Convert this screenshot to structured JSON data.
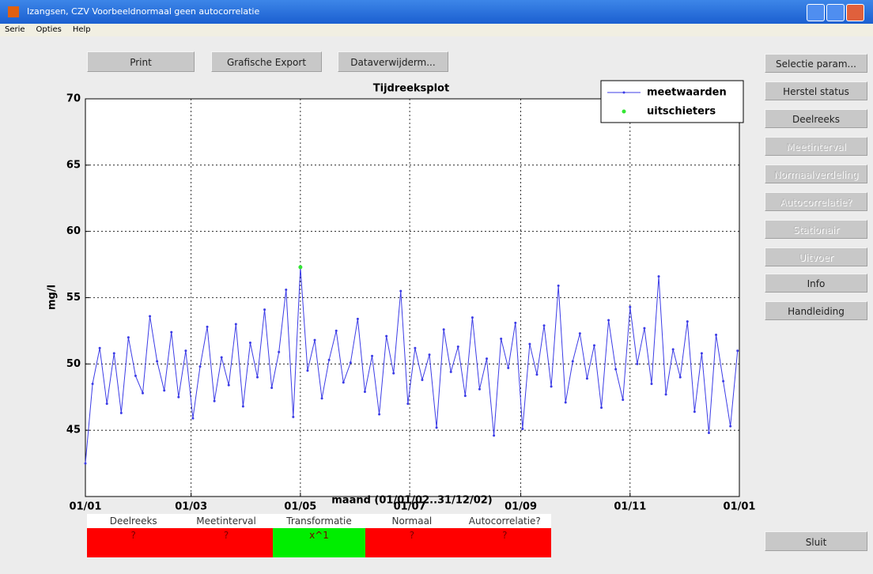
{
  "window": {
    "title": "Izangsen, CZV Voorbeeldnormaal geen autocorrelatie",
    "menu": [
      "Serie",
      "Opties",
      "Help"
    ]
  },
  "toolbar": [
    "Print",
    "Grafische Export",
    "Dataverwijderm..."
  ],
  "side_buttons": [
    {
      "label": "Selectie param...",
      "enabled": true
    },
    {
      "label": "Herstel status",
      "enabled": true
    },
    {
      "label": "Deelreeks",
      "enabled": true
    },
    {
      "label": "Meetinterval",
      "enabled": false
    },
    {
      "label": "Normaalverdeling",
      "enabled": false
    },
    {
      "label": "Autocorrelatie?",
      "enabled": false
    },
    {
      "label": "Stationair",
      "enabled": false
    },
    {
      "label": "Uitvoer",
      "enabled": false
    },
    {
      "label": "Info",
      "enabled": true
    },
    {
      "label": "Handleiding",
      "enabled": true
    }
  ],
  "close_button": "Sluit",
  "chart_data": {
    "type": "line",
    "title": "Tijdreeksplot",
    "x_label": "maand (01/01/02..31/12/02)",
    "y_label": "mg/l",
    "xlim": [
      0,
      365
    ],
    "xticks": [
      {
        "value": 0,
        "label": "01/01"
      },
      {
        "value": 59,
        "label": "01/03"
      },
      {
        "value": 120,
        "label": "01/05"
      },
      {
        "value": 181,
        "label": "01/07"
      },
      {
        "value": 243,
        "label": "01/09"
      },
      {
        "value": 304,
        "label": "01/11"
      },
      {
        "value": 365,
        "label": "01/01"
      }
    ],
    "ylim": [
      40,
      70
    ],
    "yticks": [
      45,
      50,
      55,
      60,
      65,
      70
    ],
    "grid": true,
    "legend": "top-right",
    "series": [
      {
        "name": "meetwaarden",
        "color": "#3c3ce6",
        "x": [
          0,
          4,
          8,
          12,
          16,
          20,
          24,
          28,
          32,
          36,
          40,
          44,
          48,
          52,
          56,
          60,
          64,
          68,
          72,
          76,
          80,
          84,
          88,
          92,
          96,
          100,
          104,
          108,
          112,
          116,
          120,
          124,
          128,
          132,
          136,
          140,
          144,
          148,
          152,
          156,
          160,
          164,
          168,
          172,
          176,
          180,
          184,
          188,
          192,
          196,
          200,
          204,
          208,
          212,
          216,
          220,
          224,
          228,
          232,
          236,
          240,
          244,
          248,
          252,
          256,
          260,
          264,
          268,
          272,
          276,
          280,
          284,
          288,
          292,
          296,
          300,
          304,
          308,
          312,
          316,
          320,
          324,
          328,
          332,
          336,
          340,
          344,
          348,
          352,
          356,
          360,
          364
        ],
        "values": [
          42.5,
          48.5,
          51.2,
          47.0,
          50.8,
          46.3,
          52.0,
          49.1,
          47.8,
          53.6,
          50.2,
          48.0,
          52.4,
          47.5,
          51.0,
          45.9,
          49.8,
          52.8,
          47.2,
          50.5,
          48.4,
          53.0,
          46.8,
          51.6,
          49.0,
          54.1,
          48.2,
          50.9,
          55.6,
          46.0,
          57.3,
          49.5,
          51.8,
          47.4,
          50.3,
          52.5,
          48.6,
          50.1,
          53.4,
          47.9,
          50.6,
          46.2,
          52.1,
          49.3,
          55.5,
          47.0,
          51.2,
          48.8,
          50.7,
          45.2,
          52.6,
          49.4,
          51.3,
          47.6,
          53.5,
          48.1,
          50.4,
          44.6,
          51.9,
          49.7,
          53.1,
          45.1,
          51.5,
          49.2,
          52.9,
          48.3,
          55.9,
          47.1,
          50.2,
          52.3,
          48.9,
          51.4,
          46.7,
          53.3,
          49.6,
          47.3,
          54.3,
          50.0,
          52.7,
          48.5,
          56.6,
          47.7,
          51.1,
          49.0,
          53.2,
          46.4,
          50.8,
          44.8,
          52.2,
          48.7,
          45.3,
          51.0
        ]
      },
      {
        "name": "uitschieters",
        "color": "#33e633",
        "x": [
          120
        ],
        "values": [
          57.3
        ]
      }
    ]
  },
  "status_table": {
    "headers": [
      "Deelreeks",
      "Meetinterval",
      "Transformatie",
      "Normaal",
      "Autocorrelatie?"
    ],
    "values": [
      "?",
      "?",
      "x^1",
      "?",
      "?"
    ],
    "colors": [
      "#ff0000",
      "#ff0000",
      "#00ee00",
      "#ff0000",
      "#ff0000"
    ]
  }
}
